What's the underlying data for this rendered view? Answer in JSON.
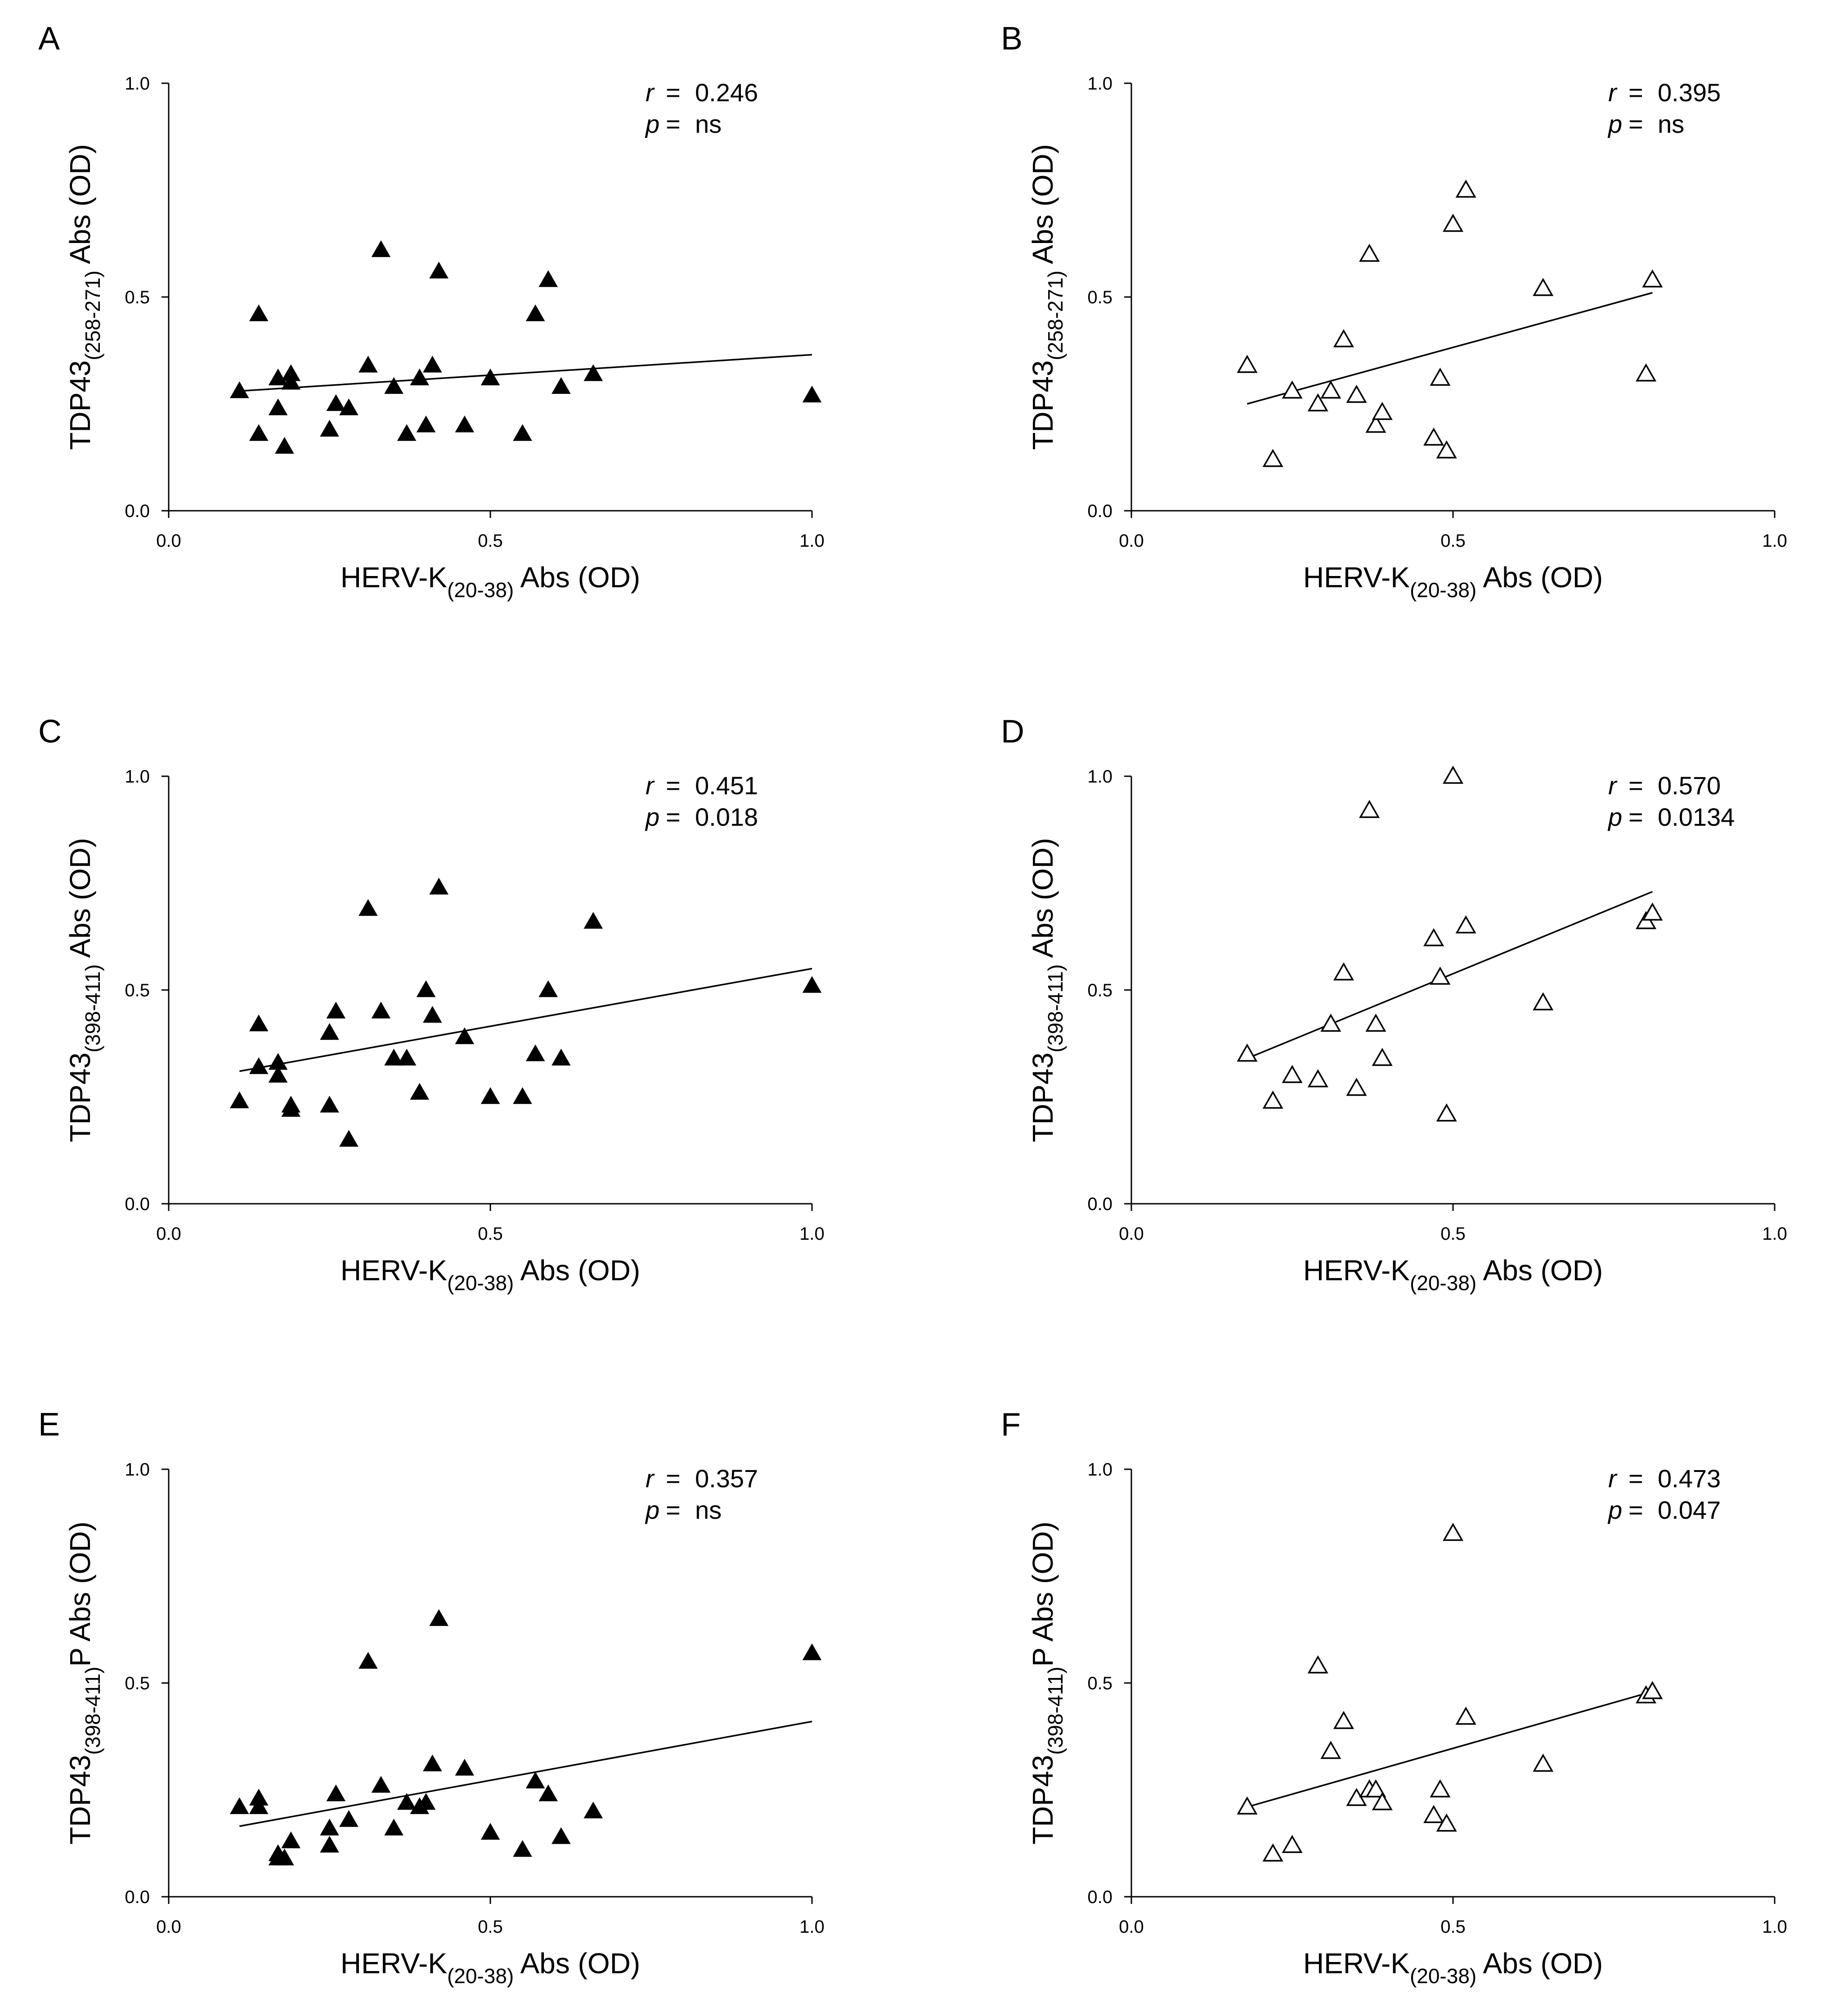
{
  "chart_data": [
    {
      "panel": "A",
      "type": "scatter",
      "xlabel": {
        "pre": "HERV-K",
        "sub": "(20-38)",
        "post": " Abs (OD)"
      },
      "ylabel": {
        "pre": "TDP43",
        "sub": "(258-271)",
        "post": " Abs (OD)"
      },
      "xlim": [
        0,
        1
      ],
      "ylim": [
        0,
        1
      ],
      "xticks": [
        "0.0",
        "0.5",
        "1.0"
      ],
      "yticks": [
        "0.0",
        "0.5",
        "1.0"
      ],
      "marker": "filled-triangle",
      "stats": {
        "r": "0.246",
        "p": "ns"
      },
      "x": [
        0.11,
        0.14,
        0.14,
        0.17,
        0.17,
        0.18,
        0.19,
        0.19,
        0.25,
        0.26,
        0.28,
        0.31,
        0.33,
        0.35,
        0.37,
        0.39,
        0.4,
        0.41,
        0.42,
        0.46,
        0.5,
        0.55,
        0.57,
        0.59,
        0.61,
        0.66,
        1.0
      ],
      "y": [
        0.28,
        0.18,
        0.46,
        0.31,
        0.24,
        0.15,
        0.32,
        0.3,
        0.19,
        0.25,
        0.24,
        0.34,
        0.61,
        0.29,
        0.18,
        0.31,
        0.2,
        0.34,
        0.56,
        0.2,
        0.31,
        0.18,
        0.46,
        0.54,
        0.29,
        0.32,
        0.27
      ],
      "fit": {
        "x": [
          0.11,
          1.0
        ],
        "y": [
          0.28,
          0.365
        ]
      }
    },
    {
      "panel": "B",
      "type": "scatter",
      "xlabel": {
        "pre": "HERV-K",
        "sub": "(20-38)",
        "post": " Abs (OD)"
      },
      "ylabel": {
        "pre": "TDP43",
        "sub": "(258-271)",
        "post": " Abs (OD)"
      },
      "xlim": [
        0,
        1
      ],
      "ylim": [
        0,
        1
      ],
      "xticks": [
        "0.0",
        "0.5",
        "1.0"
      ],
      "yticks": [
        "0.0",
        "0.5",
        "1.0"
      ],
      "marker": "open-triangle",
      "stats": {
        "r": "0.395",
        "p": "ns"
      },
      "x": [
        0.18,
        0.22,
        0.25,
        0.29,
        0.31,
        0.33,
        0.35,
        0.37,
        0.38,
        0.39,
        0.47,
        0.48,
        0.49,
        0.5,
        0.52,
        0.64,
        0.8,
        0.81
      ],
      "y": [
        0.34,
        0.12,
        0.28,
        0.25,
        0.28,
        0.4,
        0.27,
        0.6,
        0.2,
        0.23,
        0.17,
        0.31,
        0.14,
        0.67,
        0.75,
        0.52,
        0.32,
        0.54
      ],
      "fit": {
        "x": [
          0.18,
          0.81
        ],
        "y": [
          0.25,
          0.51
        ]
      }
    },
    {
      "panel": "C",
      "type": "scatter",
      "xlabel": {
        "pre": "HERV-K",
        "sub": "(20-38)",
        "post": " Abs (OD)"
      },
      "ylabel": {
        "pre": "TDP43",
        "sub": "(398-411)",
        "post": " Abs (OD)"
      },
      "xlim": [
        0,
        1
      ],
      "ylim": [
        0,
        1
      ],
      "xticks": [
        "0.0",
        "0.5",
        "1.0"
      ],
      "yticks": [
        "0.0",
        "0.5",
        "1.0"
      ],
      "marker": "filled-triangle",
      "stats": {
        "r": "0.451",
        "p": "0.018"
      },
      "x": [
        0.11,
        0.14,
        0.14,
        0.17,
        0.17,
        0.19,
        0.19,
        0.25,
        0.25,
        0.26,
        0.28,
        0.31,
        0.33,
        0.35,
        0.37,
        0.39,
        0.4,
        0.41,
        0.42,
        0.46,
        0.5,
        0.55,
        0.57,
        0.59,
        0.61,
        0.66,
        1.0
      ],
      "y": [
        0.24,
        0.32,
        0.42,
        0.33,
        0.3,
        0.23,
        0.22,
        0.4,
        0.23,
        0.45,
        0.15,
        0.69,
        0.45,
        0.34,
        0.34,
        0.26,
        0.5,
        0.44,
        0.74,
        0.39,
        0.25,
        0.25,
        0.35,
        0.5,
        0.34,
        0.66,
        0.51
      ],
      "fit": {
        "x": [
          0.11,
          1.0
        ],
        "y": [
          0.31,
          0.55
        ]
      }
    },
    {
      "panel": "D",
      "type": "scatter",
      "xlabel": {
        "pre": "HERV-K",
        "sub": "(20-38)",
        "post": " Abs (OD)"
      },
      "ylabel": {
        "pre": "TDP43",
        "sub": "(398-411)",
        "post": " Abs (OD)"
      },
      "xlim": [
        0,
        1
      ],
      "ylim": [
        0,
        1
      ],
      "xticks": [
        "0.0",
        "0.5",
        "1.0"
      ],
      "yticks": [
        "0.0",
        "0.5",
        "1.0"
      ],
      "marker": "open-triangle",
      "stats": {
        "r": "0.570",
        "p": "0.0134"
      },
      "x": [
        0.18,
        0.22,
        0.25,
        0.29,
        0.31,
        0.33,
        0.35,
        0.37,
        0.38,
        0.39,
        0.47,
        0.48,
        0.49,
        0.5,
        0.52,
        0.64,
        0.8,
        0.81
      ],
      "y": [
        0.35,
        0.24,
        0.3,
        0.29,
        0.42,
        0.54,
        0.27,
        0.92,
        0.42,
        0.34,
        0.62,
        0.53,
        0.21,
        1.0,
        0.65,
        0.47,
        0.66,
        0.68
      ],
      "fit": {
        "x": [
          0.18,
          0.81
        ],
        "y": [
          0.34,
          0.73
        ]
      }
    },
    {
      "panel": "E",
      "type": "scatter",
      "xlabel": {
        "pre": "HERV-K",
        "sub": "(20-38)",
        "post": " Abs (OD)"
      },
      "ylabel": {
        "pre": "TDP43",
        "sub": "(398-411)",
        "post": "P Abs (OD)"
      },
      "xlim": [
        0,
        1
      ],
      "ylim": [
        0,
        1
      ],
      "xticks": [
        "0.0",
        "0.5",
        "1.0"
      ],
      "yticks": [
        "0.0",
        "0.5",
        "1.0"
      ],
      "marker": "filled-triangle",
      "stats": {
        "r": "0.357",
        "p": "ns"
      },
      "x": [
        0.11,
        0.14,
        0.14,
        0.17,
        0.17,
        0.18,
        0.19,
        0.25,
        0.25,
        0.26,
        0.28,
        0.31,
        0.33,
        0.35,
        0.37,
        0.39,
        0.4,
        0.41,
        0.42,
        0.46,
        0.5,
        0.55,
        0.57,
        0.59,
        0.61,
        0.66,
        1.0
      ],
      "y": [
        0.21,
        0.21,
        0.23,
        0.1,
        0.09,
        0.09,
        0.13,
        0.16,
        0.12,
        0.24,
        0.18,
        0.55,
        0.26,
        0.16,
        0.22,
        0.21,
        0.22,
        0.31,
        0.65,
        0.3,
        0.15,
        0.11,
        0.27,
        0.24,
        0.14,
        0.2,
        0.57
      ],
      "fit": {
        "x": [
          0.11,
          1.0
        ],
        "y": [
          0.165,
          0.41
        ]
      }
    },
    {
      "panel": "F",
      "type": "scatter",
      "xlabel": {
        "pre": "HERV-K",
        "sub": "(20-38)",
        "post": " Abs (OD)"
      },
      "ylabel": {
        "pre": "TDP43",
        "sub": "(398-411)",
        "post": "P Abs (OD)"
      },
      "xlim": [
        0,
        1
      ],
      "ylim": [
        0,
        1
      ],
      "xticks": [
        "0.0",
        "0.5",
        "1.0"
      ],
      "yticks": [
        "0.0",
        "0.5",
        "1.0"
      ],
      "marker": "open-triangle",
      "stats": {
        "r": "0.473",
        "p": "0.047"
      },
      "x": [
        0.18,
        0.22,
        0.25,
        0.29,
        0.31,
        0.33,
        0.35,
        0.37,
        0.38,
        0.39,
        0.47,
        0.48,
        0.49,
        0.5,
        0.52,
        0.64,
        0.8,
        0.81
      ],
      "y": [
        0.21,
        0.1,
        0.12,
        0.54,
        0.34,
        0.41,
        0.23,
        0.25,
        0.25,
        0.22,
        0.19,
        0.25,
        0.17,
        0.85,
        0.42,
        0.31,
        0.47,
        0.48
      ],
      "fit": {
        "x": [
          0.18,
          0.81
        ],
        "y": [
          0.21,
          0.48
        ]
      }
    }
  ]
}
